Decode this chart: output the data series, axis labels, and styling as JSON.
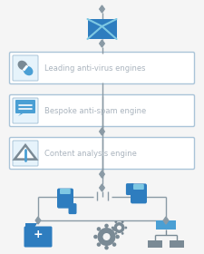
{
  "bg_color": "#f5f5f5",
  "box_color": "#ffffff",
  "box_border": "#aac4d8",
  "box_text_color": "#aab4be",
  "arrow_color": "#8a9aa5",
  "blue_dark": "#2e7dbf",
  "blue_mid": "#4a9fd4",
  "blue_light": "#7ec8e3",
  "gray_icon": "#7a8a95",
  "gray_light": "#a0b0ba",
  "boxes": [
    "Leading anti-virus engines",
    "Bespoke anti-spam engine",
    "Content analysis engine"
  ],
  "figsize": [
    2.25,
    2.8
  ],
  "dpi": 100
}
